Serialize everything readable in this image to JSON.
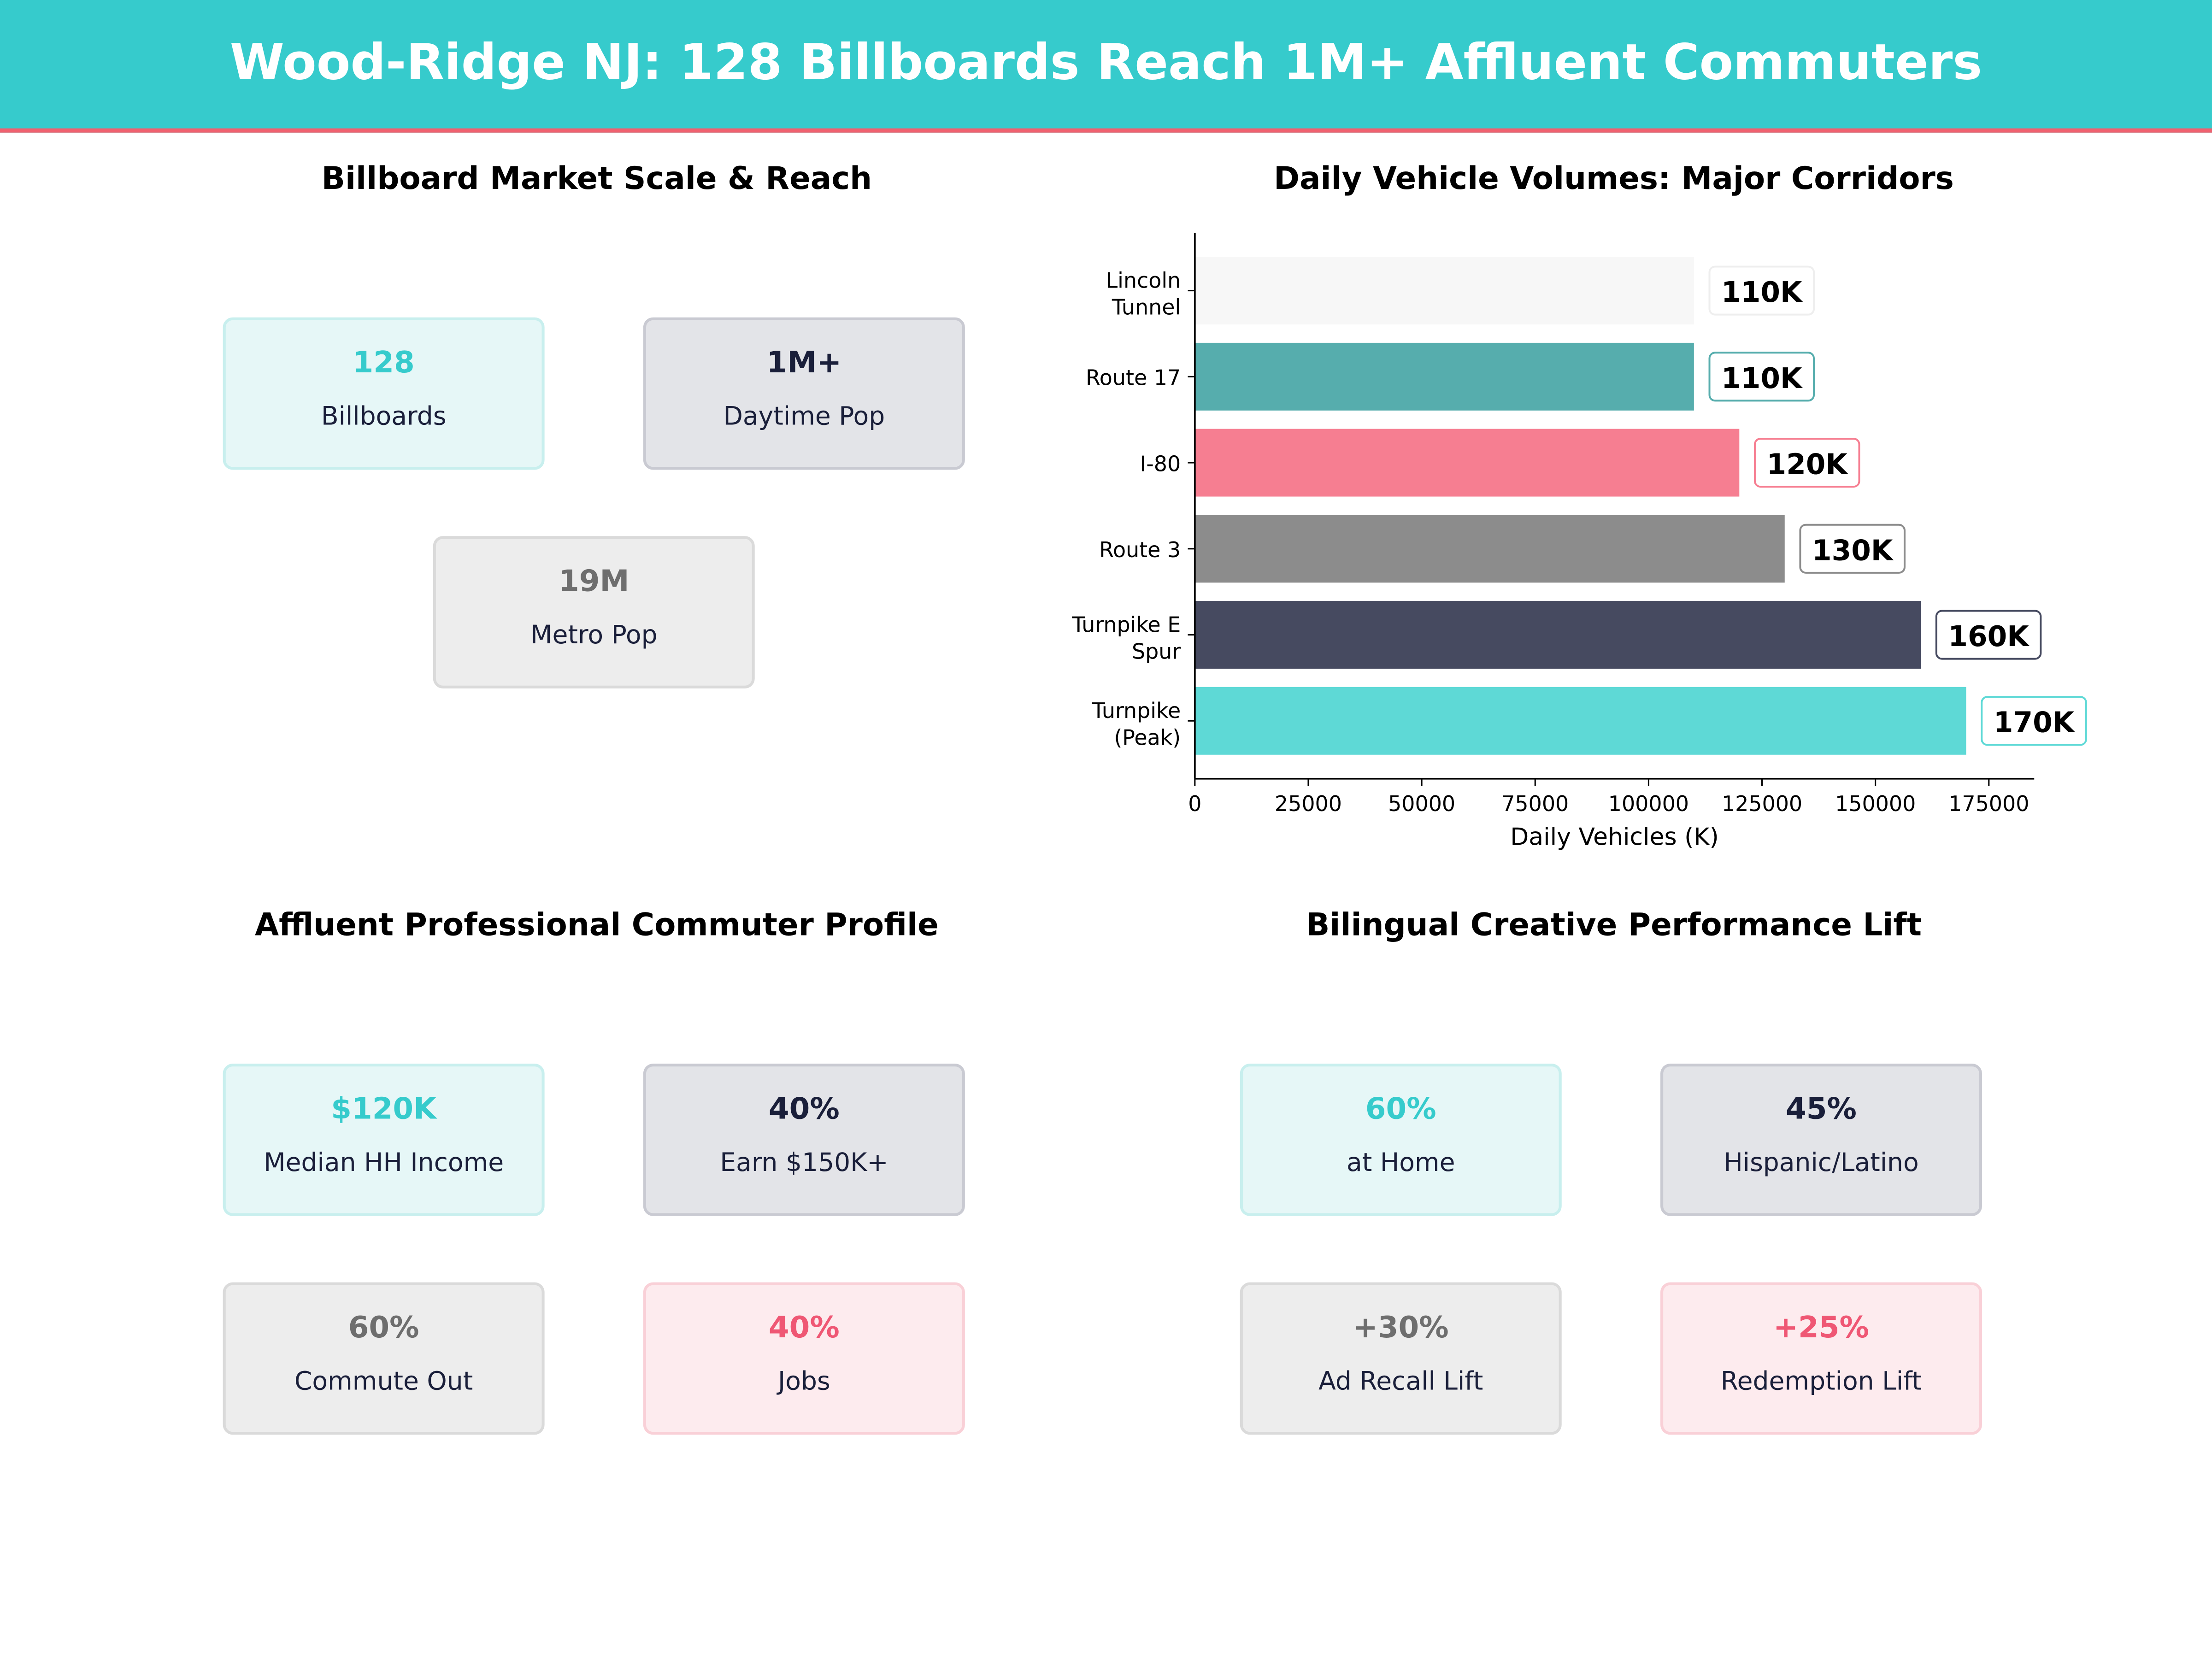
{
  "header": {
    "title": "Wood-Ridge NJ: 128 Billboards Reach 1M+ Affluent Commuters"
  },
  "panels": {
    "scale": {
      "title": "Billboard Market Scale & Reach",
      "cards": [
        {
          "value": "128",
          "label": "Billboards",
          "color": "#36cbcc"
        },
        {
          "value": "1M+",
          "label": "Daytime Pop",
          "color": "#1a1f3a"
        },
        {
          "value": "19M",
          "label": "Metro Pop",
          "color": "#6e6e6e"
        }
      ]
    },
    "profile": {
      "title": "Affluent Professional Commuter Profile",
      "cards": [
        {
          "value": "$120K",
          "label": "Median HH Income",
          "color": "#36cbcc"
        },
        {
          "value": "40%",
          "label": "Earn $150K+",
          "color": "#1a1f3a"
        },
        {
          "value": "60%",
          "label": "Commute Out",
          "color": "#6e6e6e"
        },
        {
          "value": "40%",
          "label": "Jobs",
          "color": "#ef5774"
        }
      ]
    },
    "bilingual": {
      "title": "Bilingual Creative Performance Lift",
      "cards": [
        {
          "value": "60%",
          "label": "at Home",
          "color": "#36cbcc"
        },
        {
          "value": "45%",
          "label": "Hispanic/Latino",
          "color": "#1a1f3a"
        },
        {
          "value": "+30%",
          "label": "Ad Recall Lift",
          "color": "#6e6e6e"
        },
        {
          "value": "+25%",
          "label": "Redemption Lift",
          "color": "#ef5774"
        }
      ]
    }
  },
  "chart_data": {
    "type": "bar",
    "orientation": "horizontal",
    "title": "Daily Vehicle Volumes: Major Corridors",
    "xlabel": "Daily Vehicles (K)",
    "ylabel": "",
    "categories": [
      [
        "Lincoln",
        "Tunnel"
      ],
      [
        "Route 17"
      ],
      [
        "I-80"
      ],
      [
        "Route 3"
      ],
      [
        "Turnpike E",
        "Spur"
      ],
      [
        "Turnpike",
        "(Peak)"
      ]
    ],
    "values": [
      110000,
      110000,
      120000,
      130000,
      160000,
      170000
    ],
    "data_labels": [
      "110K",
      "110K",
      "120K",
      "130K",
      "160K",
      "170K"
    ],
    "colors": [
      "#f7f7f7",
      "#56adad",
      "#f67e91",
      "#8c8c8c",
      "#464a60",
      "#5ed9d6"
    ],
    "label_border_colors": [
      "#eeeeee",
      "#56adad",
      "#f67e91",
      "#8c8c8c",
      "#464a60",
      "#5ed9d6"
    ],
    "xlim": [
      0,
      185000
    ],
    "xticks": [
      0,
      25000,
      50000,
      75000,
      100000,
      125000,
      150000,
      175000
    ],
    "grid": false
  }
}
